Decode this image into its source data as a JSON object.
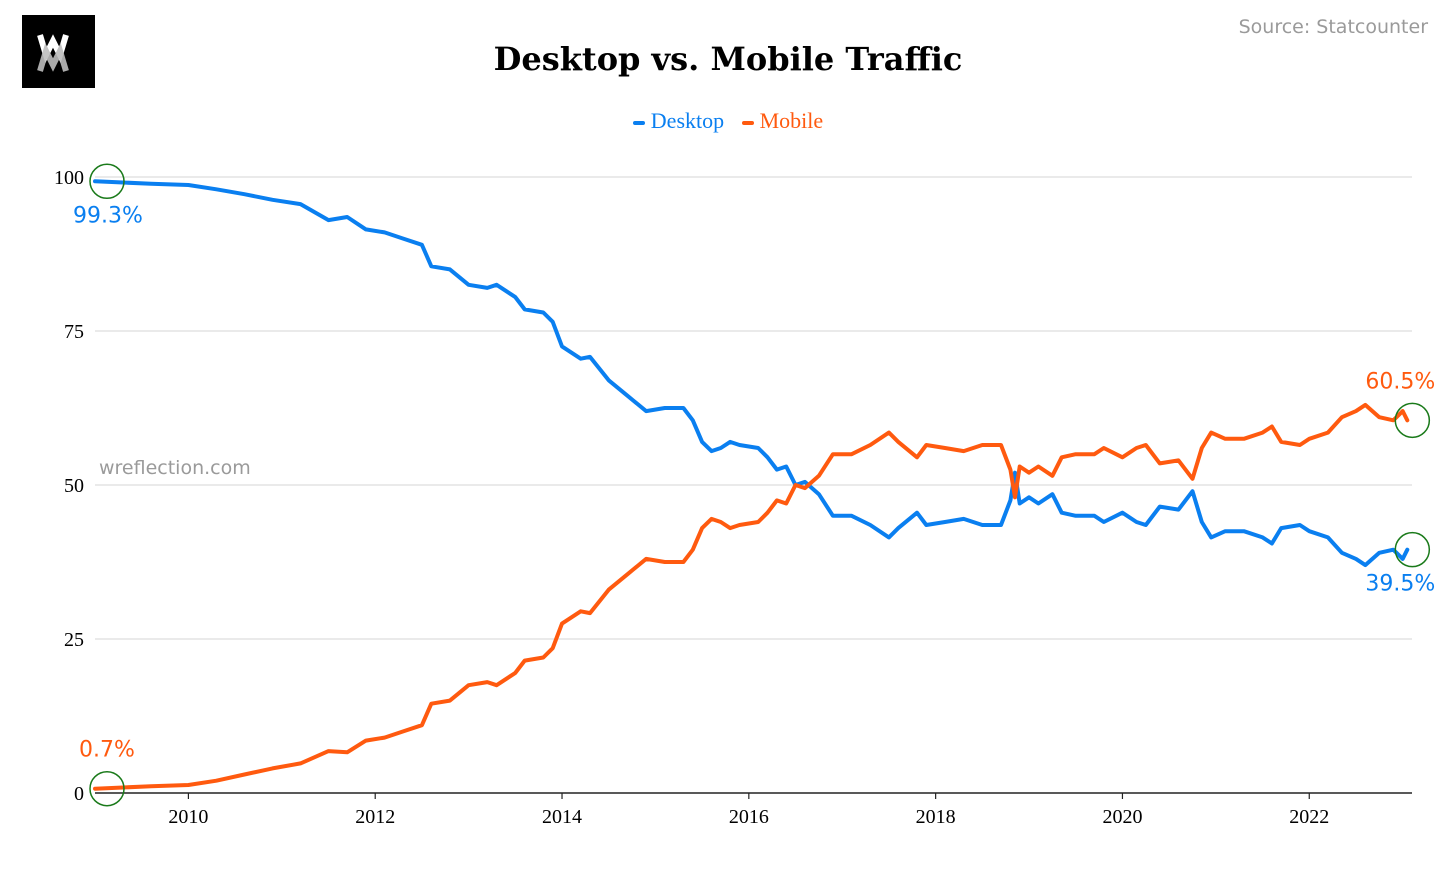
{
  "header": {
    "logo_text": "WM",
    "source": "Source: Statcounter",
    "watermark": "wreflection.com"
  },
  "chart_data": {
    "type": "line",
    "title": "Desktop vs. Mobile Traffic",
    "xlabel": "",
    "ylabel": "",
    "xlim": [
      2009.0,
      2023.1
    ],
    "ylim": [
      0,
      100
    ],
    "yticks": [
      0,
      25,
      50,
      75,
      100
    ],
    "xticks": [
      2010,
      2012,
      2014,
      2016,
      2018,
      2020,
      2022
    ],
    "grid": true,
    "legend_position": "top-center",
    "series": [
      {
        "name": "Desktop",
        "color": "#0a7ff0",
        "points": [
          [
            2009.0,
            99.3
          ],
          [
            2009.3,
            99.1
          ],
          [
            2009.6,
            98.9
          ],
          [
            2010.0,
            98.7
          ],
          [
            2010.3,
            98.0
          ],
          [
            2010.6,
            97.2
          ],
          [
            2010.9,
            96.3
          ],
          [
            2011.2,
            95.6
          ],
          [
            2011.5,
            93.0
          ],
          [
            2011.7,
            93.5
          ],
          [
            2011.9,
            91.5
          ],
          [
            2012.1,
            91.0
          ],
          [
            2012.3,
            90.0
          ],
          [
            2012.5,
            89.0
          ],
          [
            2012.6,
            85.5
          ],
          [
            2012.8,
            85.0
          ],
          [
            2013.0,
            82.5
          ],
          [
            2013.2,
            82.0
          ],
          [
            2013.3,
            82.5
          ],
          [
            2013.5,
            80.5
          ],
          [
            2013.6,
            78.5
          ],
          [
            2013.8,
            78.0
          ],
          [
            2013.9,
            76.5
          ],
          [
            2014.0,
            72.5
          ],
          [
            2014.2,
            70.5
          ],
          [
            2014.3,
            70.8
          ],
          [
            2014.5,
            67.0
          ],
          [
            2014.7,
            64.5
          ],
          [
            2014.9,
            62.0
          ],
          [
            2015.1,
            62.5
          ],
          [
            2015.3,
            62.5
          ],
          [
            2015.4,
            60.5
          ],
          [
            2015.5,
            57.0
          ],
          [
            2015.6,
            55.5
          ],
          [
            2015.7,
            56.0
          ],
          [
            2015.8,
            57.0
          ],
          [
            2015.9,
            56.5
          ],
          [
            2016.1,
            56.0
          ],
          [
            2016.2,
            54.5
          ],
          [
            2016.3,
            52.5
          ],
          [
            2016.4,
            53.0
          ],
          [
            2016.5,
            50.0
          ],
          [
            2016.6,
            50.5
          ],
          [
            2016.75,
            48.5
          ],
          [
            2016.9,
            45.0
          ],
          [
            2017.1,
            45.0
          ],
          [
            2017.3,
            43.5
          ],
          [
            2017.5,
            41.5
          ],
          [
            2017.6,
            43.0
          ],
          [
            2017.8,
            45.5
          ],
          [
            2017.9,
            43.5
          ],
          [
            2018.1,
            44.0
          ],
          [
            2018.3,
            44.5
          ],
          [
            2018.5,
            43.5
          ],
          [
            2018.7,
            43.5
          ],
          [
            2018.8,
            47.5
          ],
          [
            2018.85,
            52.0
          ],
          [
            2018.9,
            47.0
          ],
          [
            2019.0,
            48.0
          ],
          [
            2019.1,
            47.0
          ],
          [
            2019.25,
            48.5
          ],
          [
            2019.35,
            45.5
          ],
          [
            2019.5,
            45.0
          ],
          [
            2019.7,
            45.0
          ],
          [
            2019.8,
            44.0
          ],
          [
            2020.0,
            45.5
          ],
          [
            2020.15,
            44.0
          ],
          [
            2020.25,
            43.5
          ],
          [
            2020.4,
            46.5
          ],
          [
            2020.6,
            46.0
          ],
          [
            2020.75,
            49.0
          ],
          [
            2020.85,
            44.0
          ],
          [
            2020.95,
            41.5
          ],
          [
            2021.1,
            42.5
          ],
          [
            2021.3,
            42.5
          ],
          [
            2021.5,
            41.5
          ],
          [
            2021.6,
            40.5
          ],
          [
            2021.7,
            43.0
          ],
          [
            2021.9,
            43.5
          ],
          [
            2022.0,
            42.5
          ],
          [
            2022.2,
            41.5
          ],
          [
            2022.35,
            39.0
          ],
          [
            2022.5,
            38.0
          ],
          [
            2022.6,
            37.0
          ],
          [
            2022.75,
            39.0
          ],
          [
            2022.9,
            39.5
          ],
          [
            2023.0,
            38.0
          ],
          [
            2023.05,
            39.5
          ]
        ]
      },
      {
        "name": "Mobile",
        "color": "#ff5a0f",
        "points": [
          [
            2009.0,
            0.7
          ],
          [
            2009.3,
            0.9
          ],
          [
            2009.6,
            1.1
          ],
          [
            2010.0,
            1.3
          ],
          [
            2010.3,
            2.0
          ],
          [
            2010.6,
            3.0
          ],
          [
            2010.9,
            4.0
          ],
          [
            2011.2,
            4.8
          ],
          [
            2011.5,
            6.8
          ],
          [
            2011.7,
            6.6
          ],
          [
            2011.9,
            8.5
          ],
          [
            2012.1,
            9.0
          ],
          [
            2012.3,
            10.0
          ],
          [
            2012.5,
            11.0
          ],
          [
            2012.6,
            14.5
          ],
          [
            2012.8,
            15.0
          ],
          [
            2013.0,
            17.5
          ],
          [
            2013.2,
            18.0
          ],
          [
            2013.3,
            17.5
          ],
          [
            2013.5,
            19.5
          ],
          [
            2013.6,
            21.5
          ],
          [
            2013.8,
            22.0
          ],
          [
            2013.9,
            23.5
          ],
          [
            2014.0,
            27.5
          ],
          [
            2014.2,
            29.5
          ],
          [
            2014.3,
            29.2
          ],
          [
            2014.5,
            33.0
          ],
          [
            2014.7,
            35.5
          ],
          [
            2014.9,
            38.0
          ],
          [
            2015.1,
            37.5
          ],
          [
            2015.3,
            37.5
          ],
          [
            2015.4,
            39.5
          ],
          [
            2015.5,
            43.0
          ],
          [
            2015.6,
            44.5
          ],
          [
            2015.7,
            44.0
          ],
          [
            2015.8,
            43.0
          ],
          [
            2015.9,
            43.5
          ],
          [
            2016.1,
            44.0
          ],
          [
            2016.2,
            45.5
          ],
          [
            2016.3,
            47.5
          ],
          [
            2016.4,
            47.0
          ],
          [
            2016.5,
            50.0
          ],
          [
            2016.6,
            49.5
          ],
          [
            2016.75,
            51.5
          ],
          [
            2016.9,
            55.0
          ],
          [
            2017.1,
            55.0
          ],
          [
            2017.3,
            56.5
          ],
          [
            2017.5,
            58.5
          ],
          [
            2017.6,
            57.0
          ],
          [
            2017.8,
            54.5
          ],
          [
            2017.9,
            56.5
          ],
          [
            2018.1,
            56.0
          ],
          [
            2018.3,
            55.5
          ],
          [
            2018.5,
            56.5
          ],
          [
            2018.7,
            56.5
          ],
          [
            2018.8,
            52.5
          ],
          [
            2018.85,
            48.0
          ],
          [
            2018.9,
            53.0
          ],
          [
            2019.0,
            52.0
          ],
          [
            2019.1,
            53.0
          ],
          [
            2019.25,
            51.5
          ],
          [
            2019.35,
            54.5
          ],
          [
            2019.5,
            55.0
          ],
          [
            2019.7,
            55.0
          ],
          [
            2019.8,
            56.0
          ],
          [
            2020.0,
            54.5
          ],
          [
            2020.15,
            56.0
          ],
          [
            2020.25,
            56.5
          ],
          [
            2020.4,
            53.5
          ],
          [
            2020.6,
            54.0
          ],
          [
            2020.75,
            51.0
          ],
          [
            2020.85,
            56.0
          ],
          [
            2020.95,
            58.5
          ],
          [
            2021.1,
            57.5
          ],
          [
            2021.3,
            57.5
          ],
          [
            2021.5,
            58.5
          ],
          [
            2021.6,
            59.5
          ],
          [
            2021.7,
            57.0
          ],
          [
            2021.9,
            56.5
          ],
          [
            2022.0,
            57.5
          ],
          [
            2022.2,
            58.5
          ],
          [
            2022.35,
            61.0
          ],
          [
            2022.5,
            62.0
          ],
          [
            2022.6,
            63.0
          ],
          [
            2022.75,
            61.0
          ],
          [
            2022.9,
            60.5
          ],
          [
            2023.0,
            62.0
          ],
          [
            2023.05,
            60.5
          ]
        ]
      }
    ],
    "annotations": [
      {
        "text": "99.3%",
        "series": "Desktop",
        "x": 2009.0,
        "y": 99.3,
        "side": "below"
      },
      {
        "text": "0.7%",
        "series": "Mobile",
        "x": 2009.0,
        "y": 0.7,
        "side": "above"
      },
      {
        "text": "60.5%",
        "series": "Mobile",
        "x": 2023.05,
        "y": 60.5,
        "side": "above"
      },
      {
        "text": "39.5%",
        "series": "Desktop",
        "x": 2023.05,
        "y": 39.5,
        "side": "below"
      }
    ],
    "highlight_color": "#1a7a1a"
  }
}
